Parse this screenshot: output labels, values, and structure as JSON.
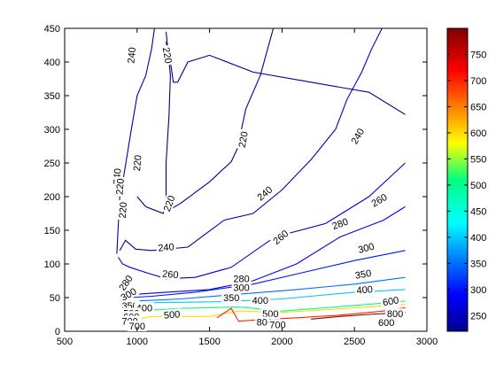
{
  "chart_data": {
    "type": "contour",
    "title": "",
    "xlabel": "",
    "ylabel": "",
    "xlim": [
      500,
      3000
    ],
    "ylim": [
      0,
      450
    ],
    "x_ticks": [
      500,
      1000,
      1500,
      2000,
      2500,
      3000
    ],
    "y_ticks": [
      0,
      50,
      100,
      150,
      200,
      250,
      300,
      350,
      400,
      450
    ],
    "grid": false,
    "colorbar": {
      "range": [
        220,
        800
      ],
      "ticks": [
        250,
        300,
        350,
        400,
        450,
        500,
        550,
        600,
        650,
        700,
        750
      ]
    },
    "contours": [
      {
        "level": 220,
        "label": "220",
        "x": [
          1000,
          1060,
          1120,
          1180,
          1200,
          1200,
          1220,
          1230,
          1200
        ],
        "y": [
          200,
          185,
          180,
          175,
          200,
          250,
          320,
          380,
          445
        ]
      },
      {
        "level": 220,
        "label": "220",
        "x": [
          1200,
          1230,
          1250,
          1280,
          1350,
          1500,
          1800,
          2200,
          2600,
          2850
        ],
        "y": [
          430,
          400,
          370,
          370,
          400,
          410,
          385,
          370,
          355,
          322
        ]
      },
      {
        "level": 220,
        "label": "220",
        "x": [
          1220,
          1300,
          1500,
          1650,
          1700,
          1720,
          1750,
          1850,
          1940
        ],
        "y": [
          180,
          190,
          222,
          252,
          275,
          300,
          330,
          380,
          450
        ]
      },
      {
        "level": 240,
        "label": "240",
        "x": [
          860,
          880,
          900,
          960,
          1000,
          1060,
          1100,
          1120
        ],
        "y": [
          115,
          200,
          220,
          300,
          350,
          380,
          420,
          450
        ]
      },
      {
        "level": 240,
        "label": "240",
        "x": [
          880,
          920,
          990,
          1100,
          1350,
          1600,
          1800,
          2000,
          2200,
          2370,
          2450,
          2550,
          2620,
          2690
        ],
        "y": [
          120,
          135,
          122,
          120,
          125,
          165,
          175,
          210,
          255,
          300,
          345,
          385,
          420,
          450
        ]
      },
      {
        "level": 260,
        "label": "260",
        "x": [
          870,
          900,
          950,
          1050,
          1200,
          1400,
          1650,
          1950,
          2300,
          2600,
          2850
        ],
        "y": [
          110,
          100,
          95,
          88,
          78,
          80,
          95,
          140,
          160,
          200,
          250
        ]
      },
      {
        "level": 280,
        "label": "280",
        "x": [
          870,
          900,
          950,
          1000,
          1200,
          1500,
          1800,
          2100,
          2400,
          2700,
          2850
        ],
        "y": [
          70,
          62,
          57,
          55,
          58,
          62,
          75,
          100,
          140,
          165,
          185
        ]
      },
      {
        "level": 300,
        "label": "300",
        "x": [
          870,
          900,
          950,
          1100,
          1400,
          1800,
          2100,
          2500,
          2850
        ],
        "y": [
          55,
          52,
          50,
          52,
          58,
          70,
          85,
          105,
          120
        ]
      },
      {
        "level": 350,
        "label": "350",
        "x": [
          880,
          1000,
          1300,
          1700,
          2100,
          2500,
          2850
        ],
        "y": [
          45,
          45,
          48,
          55,
          62,
          70,
          80
        ]
      },
      {
        "level": 400,
        "label": "400",
        "x": [
          900,
          1000,
          1300,
          1600,
          2000,
          2500,
          2850
        ],
        "y": [
          40,
          42,
          43,
          44,
          48,
          58,
          62
        ]
      },
      {
        "level": 500,
        "label": "500",
        "x": [
          900,
          1000,
          1300,
          1700,
          2000,
          2300,
          2600,
          2850
        ],
        "y": [
          25,
          30,
          34,
          36,
          30,
          35,
          40,
          45
        ]
      },
      {
        "level": 600,
        "label": "600",
        "x": [
          920,
          1100,
          1500,
          1700,
          2000,
          2300,
          2600,
          2850
        ],
        "y": [
          15,
          22,
          22,
          30,
          28,
          32,
          36,
          40
        ]
      },
      {
        "level": 700,
        "label": "700",
        "x": [
          1550,
          1650,
          1700,
          1850,
          2100,
          2400,
          2700,
          2850
        ],
        "y": [
          20,
          34,
          15,
          17,
          20,
          24,
          30,
          35
        ]
      },
      {
        "level": 800,
        "label": "800",
        "x": [
          2200,
          2400,
          2600,
          2850
        ],
        "y": [
          18,
          22,
          25,
          28
        ]
      }
    ],
    "contour_labels": [
      {
        "text": "240",
        "x": 960,
        "y": 410,
        "rotate": -85
      },
      {
        "text": "220",
        "x": 1210,
        "y": 410,
        "rotate": 80
      },
      {
        "text": "220",
        "x": 1730,
        "y": 285,
        "rotate": -80
      },
      {
        "text": "240",
        "x": 2520,
        "y": 290,
        "rotate": -60
      },
      {
        "text": "220",
        "x": 1000,
        "y": 250,
        "rotate": -85
      },
      {
        "text": "240",
        "x": 860,
        "y": 230,
        "rotate": -85
      },
      {
        "text": "220",
        "x": 880,
        "y": 215,
        "rotate": -85
      },
      {
        "text": "220",
        "x": 900,
        "y": 180,
        "rotate": -85
      },
      {
        "text": "220",
        "x": 1220,
        "y": 190,
        "rotate": -70
      },
      {
        "text": "240",
        "x": 1880,
        "y": 205,
        "rotate": -40
      },
      {
        "text": "260",
        "x": 2670,
        "y": 195,
        "rotate": -30
      },
      {
        "text": "260",
        "x": 1990,
        "y": 140,
        "rotate": -40
      },
      {
        "text": "280",
        "x": 2400,
        "y": 160,
        "rotate": -20
      },
      {
        "text": "240",
        "x": 1200,
        "y": 125,
        "rotate": -5
      },
      {
        "text": "300",
        "x": 2580,
        "y": 124,
        "rotate": -15
      },
      {
        "text": "260",
        "x": 1230,
        "y": 85,
        "rotate": 5
      },
      {
        "text": "350",
        "x": 2560,
        "y": 85,
        "rotate": -10
      },
      {
        "text": "280",
        "x": 1720,
        "y": 78,
        "rotate": 0
      },
      {
        "text": "280",
        "x": 920,
        "y": 72,
        "rotate": -55
      },
      {
        "text": "300",
        "x": 1720,
        "y": 65,
        "rotate": 0
      },
      {
        "text": "400",
        "x": 2570,
        "y": 62,
        "rotate": -5
      },
      {
        "text": "300",
        "x": 940,
        "y": 55,
        "rotate": -30
      },
      {
        "text": "350",
        "x": 1650,
        "y": 50,
        "rotate": 0
      },
      {
        "text": "400",
        "x": 1850,
        "y": 46,
        "rotate": 0
      },
      {
        "text": "350",
        "x": 950,
        "y": 38,
        "rotate": 0
      },
      {
        "text": "400",
        "x": 1050,
        "y": 35,
        "rotate": 0
      },
      {
        "text": "600",
        "x": 2750,
        "y": 45,
        "rotate": -10
      },
      {
        "text": "500",
        "x": 960,
        "y": 27,
        "rotate": 0
      },
      {
        "text": "500",
        "x": 1240,
        "y": 25,
        "rotate": -5
      },
      {
        "text": "500",
        "x": 1920,
        "y": 26,
        "rotate": 0
      },
      {
        "text": "600",
        "x": 960,
        "y": 22,
        "rotate": 0
      },
      {
        "text": "700",
        "x": 950,
        "y": 15,
        "rotate": 0
      },
      {
        "text": "800",
        "x": 2780,
        "y": 26,
        "rotate": 0
      },
      {
        "text": "800",
        "x": 1880,
        "y": 14,
        "rotate": 0
      },
      {
        "text": "700",
        "x": 1970,
        "y": 10,
        "rotate": 0
      },
      {
        "text": "600",
        "x": 2720,
        "y": 13,
        "rotate": 0
      },
      {
        "text": "700",
        "x": 1000,
        "y": 8,
        "rotate": 0
      }
    ]
  }
}
